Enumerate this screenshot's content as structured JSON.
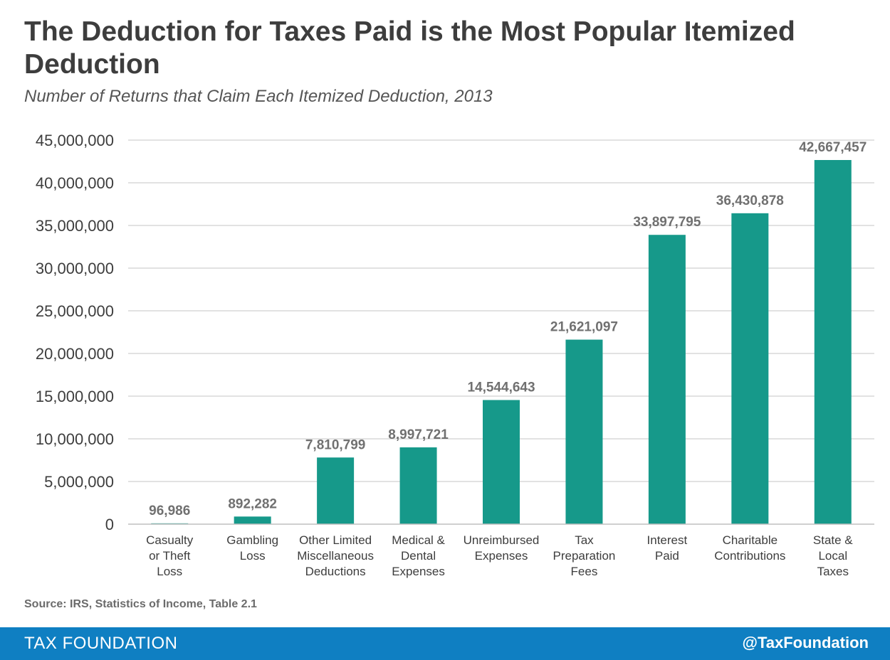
{
  "header": {
    "title": "The Deduction for Taxes Paid is the Most Popular Itemized Deduction",
    "subtitle": "Number of Returns that Claim Each Itemized Deduction, 2013"
  },
  "chart_data": {
    "type": "bar",
    "title": "The Deduction for Taxes Paid is the Most Popular Itemized Deduction",
    "subtitle": "Number of Returns that Claim Each Itemized Deduction, 2013",
    "xlabel": "",
    "ylabel": "",
    "ylim": [
      0,
      45000000
    ],
    "yticks": [
      "0",
      "5,000,000",
      "10,000,000",
      "15,000,000",
      "20,000,000",
      "25,000,000",
      "30,000,000",
      "35,000,000",
      "40,000,000",
      "45,000,000"
    ],
    "ytick_values": [
      0,
      5000000,
      10000000,
      15000000,
      20000000,
      25000000,
      30000000,
      35000000,
      40000000,
      45000000
    ],
    "grid": true,
    "bar_color": "#16998a",
    "categories": [
      [
        "Casualty",
        "or Theft",
        "Loss"
      ],
      [
        "Gambling",
        "Loss"
      ],
      [
        "Other Limited",
        "Miscellaneous",
        "Deductions"
      ],
      [
        "Medical &",
        "Dental",
        "Expenses"
      ],
      [
        "Unreimbursed",
        "Expenses"
      ],
      [
        "Tax",
        "Preparation",
        "Fees"
      ],
      [
        "Interest",
        "Paid"
      ],
      [
        "Charitable",
        "Contributions"
      ],
      [
        "State &",
        "Local",
        "Taxes"
      ]
    ],
    "values": [
      96986,
      892282,
      7810799,
      8997721,
      14544643,
      21621097,
      33897795,
      36430878,
      42667457
    ],
    "value_labels": [
      "96,986",
      "892,282",
      "7,810,799",
      "8,997,721",
      "14,544,643",
      "21,621,097",
      "33,897,795",
      "36,430,878",
      "42,667,457"
    ]
  },
  "source": "Source: IRS, Statistics of Income, Table 2.1",
  "footer": {
    "brand": "TAX FOUNDATION",
    "handle": "@TaxFoundation"
  }
}
